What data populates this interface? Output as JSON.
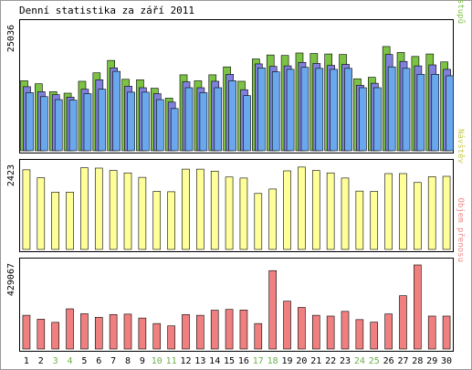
{
  "chart_data": {
    "type": "bar",
    "title": "Denní statistika za září 2011",
    "categories": [
      "1",
      "2",
      "3",
      "4",
      "5",
      "6",
      "7",
      "8",
      "9",
      "10",
      "11",
      "12",
      "13",
      "14",
      "15",
      "16",
      "17",
      "18",
      "19",
      "20",
      "21",
      "22",
      "23",
      "24",
      "25",
      "26",
      "27",
      "28",
      "29",
      "30"
    ],
    "weekend_days": [
      "3",
      "4",
      "10",
      "11",
      "17",
      "18",
      "24",
      "25"
    ],
    "panels": [
      {
        "id": "accesses",
        "ylabel_parts": [
          {
            "text": "Stránek",
            "color": "#6aa8ee"
          },
          {
            "text": "/",
            "color": "#444444"
          },
          {
            "text": "Souborů",
            "color": "#8080dd"
          },
          {
            "text": "/",
            "color": "#444444"
          },
          {
            "text": "Přístupů",
            "color": "#7cc244"
          }
        ],
        "max_label": "25036",
        "ymax": 25036,
        "series": [
          {
            "name": "Přístupů",
            "color": "#7cc244",
            "values": [
              14100,
              13500,
              11900,
              11600,
              14000,
              15700,
              18200,
              14400,
              14300,
              12600,
              10600,
              15300,
              14100,
              15300,
              16900,
              14000,
              18500,
              19300,
              19200,
              19700,
              19600,
              19500,
              19400,
              14500,
              14800,
              21000,
              19800,
              19000,
              19500,
              17900
            ]
          },
          {
            "name": "Souborů",
            "color": "#8080dd",
            "values": [
              12900,
              11900,
              11300,
              10800,
              12400,
              14300,
              16700,
              13000,
              12700,
              11500,
              9800,
              13900,
              12700,
              14000,
              15400,
              12300,
              17500,
              17000,
              17100,
              17800,
              17600,
              17200,
              17400,
              13200,
              13600,
              19400,
              18000,
              17100,
              17300,
              16400
            ]
          },
          {
            "name": "Stránek",
            "color": "#6aa8ee",
            "values": [
              11700,
              10900,
              10300,
              10200,
              11500,
              12400,
              16000,
              11800,
              11800,
              10300,
              8500,
              12700,
              11700,
              12700,
              14100,
              11100,
              16700,
              15900,
              16400,
              16800,
              16600,
              16400,
              16600,
              12700,
              12700,
              16900,
              16600,
              15400,
              15400,
              15100
            ]
          }
        ]
      },
      {
        "id": "visits",
        "ylabel_parts": [
          {
            "text": "Návštěv",
            "color": "#c8c84a"
          }
        ],
        "max_label": "2423",
        "ymax": 2423,
        "series": [
          {
            "name": "Návštěv",
            "color": "#ffff99",
            "values": [
              2320,
              2090,
              1670,
              1670,
              2380,
              2370,
              2300,
              2230,
              2100,
              1690,
              1680,
              2340,
              2340,
              2280,
              2110,
              2080,
              1630,
              1760,
              2290,
              2400,
              2300,
              2230,
              2080,
              1700,
              1690,
              2210,
              2210,
              1950,
              2120,
              2130
            ]
          }
        ]
      },
      {
        "id": "traffic",
        "ylabel_parts": [
          {
            "text": "Objem přenosu",
            "color": "#ee8888"
          }
        ],
        "max_label": "429067",
        "ymax": 429067,
        "series": [
          {
            "name": "Objem přenosu",
            "color": "#f08080",
            "values": [
              172000,
              152000,
              136000,
              205000,
              180000,
              162000,
              176000,
              178000,
              158000,
              130000,
              118000,
              176000,
              172000,
              198000,
              202000,
              199000,
              130000,
              400000,
              244000,
              212000,
              172000,
              168000,
              192000,
              150000,
              137000,
              179000,
              272000,
              429067,
              168000,
              168000
            ]
          }
        ]
      }
    ]
  }
}
